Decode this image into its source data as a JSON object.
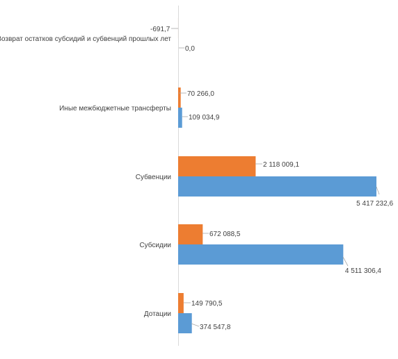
{
  "chart_data": {
    "type": "bar",
    "orientation": "horizontal",
    "categories": [
      "Возврат остатков субсидий и субвенций прошлых лет",
      "Иные межбюджетные трансферты",
      "Субвенции",
      "Субсидии",
      "Дотации"
    ],
    "series": [
      {
        "color": "#ed7d31",
        "values": [
          -691.7,
          70266.0,
          2118009.1,
          672088.5,
          149790.5
        ],
        "labels": [
          "-691,7",
          "70 266,0",
          "2 118 009,1",
          "672 088,5",
          "149 790,5"
        ]
      },
      {
        "color": "#5b9bd5",
        "values": [
          0.0,
          109034.9,
          5417232.6,
          4511306.4,
          374547.8
        ],
        "labels": [
          "0,0",
          "109 034,9",
          "5 417 232,6",
          "4 511 306,4",
          "374 547,8"
        ]
      }
    ],
    "title": "",
    "xlabel": "",
    "ylabel": "",
    "grid": false,
    "legend": "none"
  }
}
